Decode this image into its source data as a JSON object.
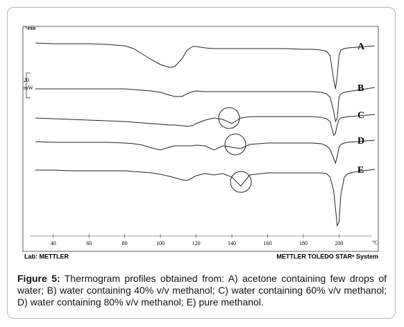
{
  "chart_data": {
    "type": "line",
    "top_label": "^exo",
    "x_label": "°C",
    "scale_bar": {
      "label": "20",
      "unit": "mW"
    },
    "lab_label": "Lab: METTLER",
    "system_label": "METTLER TOLEDO STARᵉ System",
    "xlim": [
      23,
      222
    ],
    "ylim": [
      0,
      324
    ],
    "xticks": [
      40,
      60,
      80,
      100,
      120,
      140,
      160,
      180,
      200
    ],
    "x": [
      30,
      40,
      50,
      60,
      70,
      80,
      85,
      90,
      95,
      100,
      105,
      108,
      112,
      115,
      118,
      120,
      125,
      130,
      135,
      140,
      145,
      150,
      160,
      170,
      180,
      185,
      190,
      193,
      195,
      197,
      198,
      199,
      200,
      201,
      203,
      205,
      210,
      220
    ],
    "series": [
      {
        "name": "A",
        "color": "#222222",
        "values": [
          300,
          299,
          299,
          299,
          298,
          296,
          292,
          284,
          276,
          269,
          265,
          266,
          277,
          290,
          295,
          295,
          293,
          292,
          292,
          292,
          292,
          292,
          292,
          292,
          291,
          291,
          290,
          288,
          282,
          247,
          234,
          252,
          282,
          290,
          292,
          293,
          294,
          296
        ]
      },
      {
        "name": "B",
        "color": "#222222",
        "values": [
          234,
          234,
          234,
          234,
          234,
          234,
          233,
          232,
          231,
          229,
          225,
          223,
          223,
          227,
          230,
          231,
          230,
          230,
          230,
          230,
          230,
          230,
          230,
          230,
          230,
          230,
          229,
          227,
          222,
          202,
          187,
          192,
          222,
          227,
          229,
          230,
          232,
          236
        ]
      },
      {
        "name": "C",
        "color": "#222222",
        "values": [
          192,
          191,
          190,
          189,
          188,
          187,
          186,
          185,
          184,
          183,
          182,
          182,
          181,
          180,
          181,
          184,
          189,
          192,
          190,
          184,
          192,
          194,
          194,
          194,
          194,
          194,
          193,
          191,
          187,
          167,
          170,
          182,
          190,
          192,
          193,
          194,
          195,
          197
        ]
      },
      {
        "name": "D",
        "color": "#222222",
        "values": [
          158,
          157,
          157,
          157,
          157,
          156,
          155,
          153,
          149,
          146,
          150,
          152,
          152,
          152,
          152,
          153,
          152,
          146,
          152,
          150,
          148,
          154,
          156,
          156,
          156,
          156,
          155,
          152,
          147,
          134,
          127,
          137,
          150,
          154,
          156,
          157,
          158,
          160
        ]
      },
      {
        "name": "E",
        "color": "#222222",
        "values": [
          117,
          117,
          116,
          116,
          116,
          116,
          115,
          114,
          113,
          111,
          108,
          106,
          103,
          102,
          106,
          109,
          112,
          110,
          112,
          107,
          94,
          110,
          113,
          113,
          113,
          113,
          113,
          112,
          107,
          87,
          62,
          37,
          42,
          82,
          107,
          112,
          115,
          118
        ]
      }
    ]
  },
  "caption": {
    "label": "Figure 5:",
    "text": "Thermogram profiles obtained from: A) acetone containing few drops of water; B) water containing 40% v/v methanol; C) water containing 60% v/v methanol; D) water containing 80% v/v methanol; E) pure methanol."
  }
}
